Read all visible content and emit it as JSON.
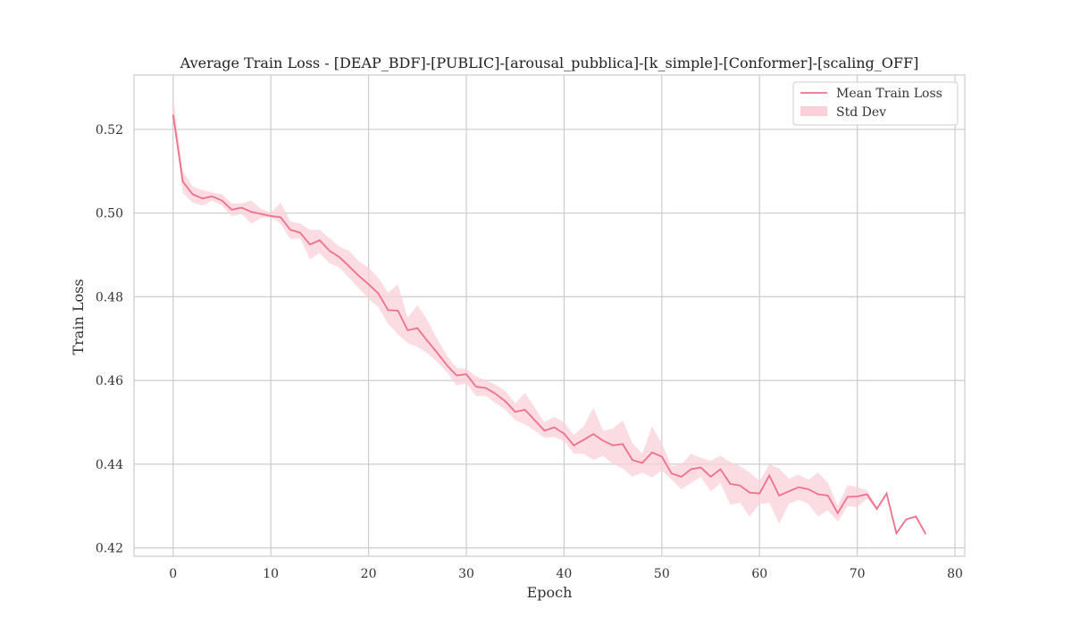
{
  "chart_data": {
    "type": "line",
    "title": "Average Train Loss - [DEAP_BDF]-[PUBLIC]-[arousal_pubblica]-[k_simple]-[Conformer]-[scaling_OFF]",
    "xlabel": "Epoch",
    "ylabel": "Train Loss",
    "xlim": [
      -4,
      81
    ],
    "ylim": [
      0.418,
      0.533
    ],
    "xticks": [
      0,
      10,
      20,
      30,
      40,
      50,
      60,
      70,
      80
    ],
    "yticks": [
      0.42,
      0.44,
      0.46,
      0.48,
      0.5,
      0.52
    ],
    "ytick_labels": [
      "0.42",
      "0.44",
      "0.46",
      "0.48",
      "0.50",
      "0.52"
    ],
    "grid": true,
    "legend_position": "top-right",
    "colors": {
      "line": "#f0708a",
      "band": "#fbd0d9",
      "grid": "#cccccc",
      "frame": "#cccccc"
    },
    "series": [
      {
        "name": "Mean Train Loss",
        "x": [
          0,
          1,
          2,
          3,
          4,
          5,
          6,
          7,
          8,
          9,
          10,
          11,
          12,
          13,
          14,
          15,
          16,
          17,
          18,
          19,
          20,
          21,
          22,
          23,
          24,
          25,
          26,
          27,
          28,
          29,
          30,
          31,
          32,
          33,
          34,
          35,
          36,
          37,
          38,
          39,
          40,
          41,
          42,
          43,
          44,
          45,
          46,
          47,
          48,
          49,
          50,
          51,
          52,
          53,
          54,
          55,
          56,
          57,
          58,
          59,
          60,
          61,
          62,
          63,
          64,
          65,
          66,
          67,
          68,
          69,
          70,
          71,
          72,
          73,
          74,
          75,
          76,
          77
        ],
        "y": [
          0.5235,
          0.5075,
          0.5045,
          0.5035,
          0.504,
          0.503,
          0.5008,
          0.5013,
          0.5003,
          0.4998,
          0.4993,
          0.499,
          0.496,
          0.4953,
          0.4925,
          0.4935,
          0.491,
          0.4895,
          0.4873,
          0.485,
          0.483,
          0.4808,
          0.4768,
          0.4767,
          0.472,
          0.4725,
          0.4695,
          0.4667,
          0.4637,
          0.4612,
          0.4615,
          0.4585,
          0.4582,
          0.4568,
          0.455,
          0.4525,
          0.453,
          0.4505,
          0.448,
          0.4488,
          0.4473,
          0.4445,
          0.4458,
          0.4472,
          0.4456,
          0.4445,
          0.4448,
          0.441,
          0.4403,
          0.4428,
          0.4418,
          0.4378,
          0.437,
          0.4388,
          0.4392,
          0.437,
          0.4388,
          0.4353,
          0.4349,
          0.4332,
          0.433,
          0.4373,
          0.4325,
          0.4335,
          0.4345,
          0.434,
          0.4328,
          0.4325,
          0.4283,
          0.4322,
          0.4323,
          0.4328,
          0.4293,
          0.433,
          0.4235,
          0.4268,
          0.4275,
          0.4233
        ]
      },
      {
        "name": "Std Dev",
        "x": [
          0,
          1,
          2,
          3,
          4,
          5,
          6,
          7,
          8,
          9,
          10,
          11,
          12,
          13,
          14,
          15,
          16,
          17,
          18,
          19,
          20,
          21,
          22,
          23,
          24,
          25,
          26,
          27,
          28,
          29,
          30,
          31,
          32,
          33,
          34,
          35,
          36,
          37,
          38,
          39,
          40,
          41,
          42,
          43,
          44,
          45,
          46,
          47,
          48,
          49,
          50,
          51,
          52,
          53,
          54,
          55,
          56,
          57,
          58,
          59,
          60,
          61,
          62,
          63,
          64,
          65,
          66,
          67,
          68,
          69,
          70,
          71,
          72
        ],
        "lower": [
          0.523,
          0.5048,
          0.5025,
          0.5018,
          0.503,
          0.5018,
          0.4993,
          0.4998,
          0.4975,
          0.4988,
          0.499,
          0.4975,
          0.4938,
          0.494,
          0.489,
          0.4905,
          0.488,
          0.487,
          0.4845,
          0.482,
          0.4795,
          0.4775,
          0.4735,
          0.471,
          0.469,
          0.468,
          0.4665,
          0.4645,
          0.462,
          0.4588,
          0.4593,
          0.4563,
          0.4563,
          0.4545,
          0.453,
          0.4505,
          0.4495,
          0.448,
          0.4463,
          0.4465,
          0.4455,
          0.4425,
          0.4425,
          0.441,
          0.442,
          0.44,
          0.439,
          0.437,
          0.438,
          0.4368,
          0.4385,
          0.4363,
          0.434,
          0.4355,
          0.437,
          0.4335,
          0.4355,
          0.4303,
          0.4308,
          0.4275,
          0.4305,
          0.4308,
          0.4258,
          0.4305,
          0.4315,
          0.4305,
          0.4275,
          0.429,
          0.4263,
          0.43,
          0.4298,
          0.4318,
          0.429
        ],
        "upper": [
          0.5275,
          0.51,
          0.5063,
          0.5055,
          0.505,
          0.5045,
          0.5023,
          0.5023,
          0.503,
          0.501,
          0.5,
          0.5025,
          0.498,
          0.4975,
          0.496,
          0.496,
          0.494,
          0.492,
          0.491,
          0.4885,
          0.487,
          0.4845,
          0.481,
          0.483,
          0.475,
          0.478,
          0.4745,
          0.47,
          0.466,
          0.463,
          0.4628,
          0.461,
          0.46,
          0.459,
          0.4575,
          0.4545,
          0.457,
          0.4535,
          0.45,
          0.4513,
          0.45,
          0.447,
          0.449,
          0.4535,
          0.448,
          0.4485,
          0.4505,
          0.445,
          0.4425,
          0.449,
          0.445,
          0.4395,
          0.44,
          0.4425,
          0.4415,
          0.4408,
          0.442,
          0.4405,
          0.4395,
          0.438,
          0.436,
          0.44,
          0.439,
          0.4365,
          0.4375,
          0.4363,
          0.438,
          0.4355,
          0.43,
          0.435,
          0.4345,
          0.4338,
          0.43
        ]
      }
    ]
  }
}
